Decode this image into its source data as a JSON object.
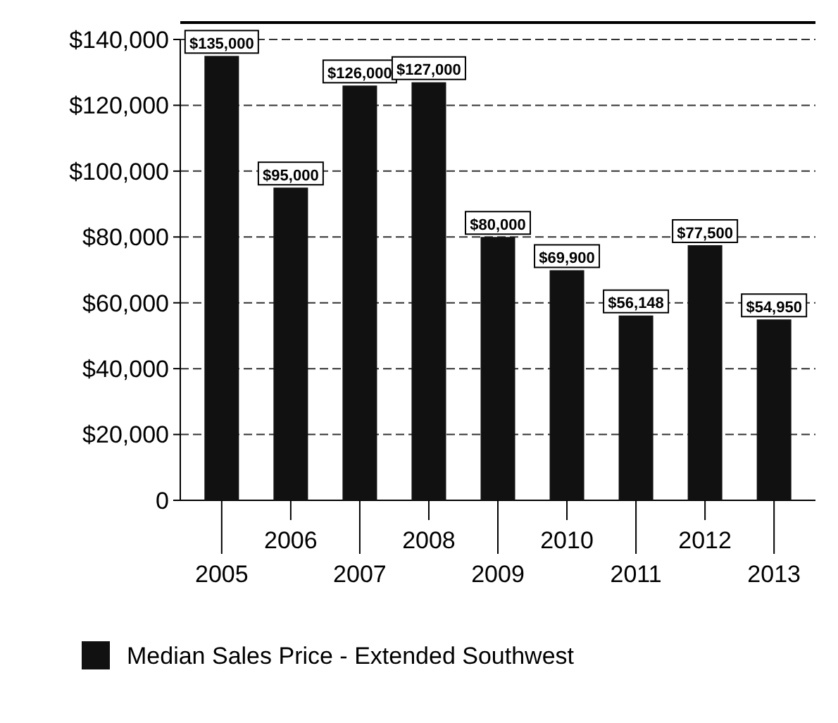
{
  "chart_data": {
    "type": "bar",
    "categories": [
      "2005",
      "2006",
      "2007",
      "2008",
      "2009",
      "2010",
      "2011",
      "2012",
      "2013"
    ],
    "series": [
      {
        "name": "Median Sales Price - Extended Southwest",
        "color": "#111111",
        "values": [
          135000,
          95000,
          126000,
          127000,
          80000,
          69900,
          56148,
          77500,
          54950
        ],
        "value_labels": [
          "$135,000",
          "$95,000",
          "$126,000",
          "$127,000",
          "$80,000",
          "$69,900",
          "$56,148",
          "$77,500",
          "$54,950"
        ]
      }
    ],
    "ylim": [
      0,
      140000
    ],
    "yticks": [
      {
        "value": 0,
        "label": "0"
      },
      {
        "value": 20000,
        "label": "$20,000"
      },
      {
        "value": 40000,
        "label": "$40,000"
      },
      {
        "value": 60000,
        "label": "$60,000"
      },
      {
        "value": 80000,
        "label": "$80,000"
      },
      {
        "value": 100000,
        "label": "$100,000"
      },
      {
        "value": 120000,
        "label": "$120,000"
      },
      {
        "value": 140000,
        "label": "$140,000"
      }
    ],
    "grid": "y",
    "legend": "bottom"
  }
}
